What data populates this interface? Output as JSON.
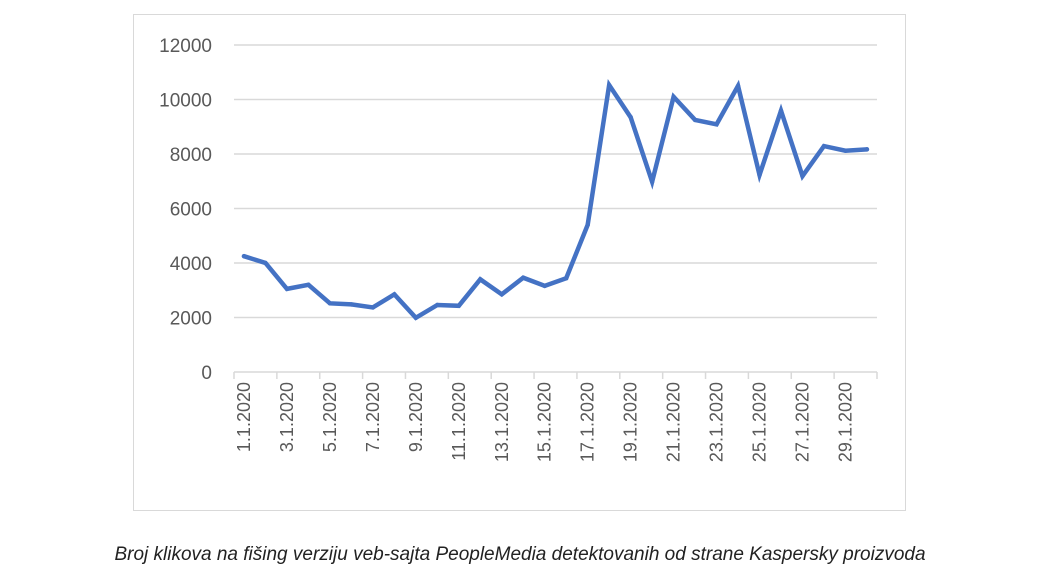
{
  "chart_data": {
    "type": "line",
    "title": "",
    "xlabel": "",
    "ylabel": "",
    "ylim": [
      0,
      12000
    ],
    "y_ticks": [
      "0",
      "2000",
      "4000",
      "6000",
      "8000",
      "10000",
      "12000"
    ],
    "x_tick_labels": [
      "1.1.2020",
      "3.1.2020",
      "5.1.2020",
      "7.1.2020",
      "9.1.2020",
      "11.1.2020",
      "13.1.2020",
      "15.1.2020",
      "17.1.2020",
      "19.1.2020",
      "21.1.2020",
      "23.1.2020",
      "25.1.2020",
      "27.1.2020",
      "29.1.2020"
    ],
    "x": [
      "1.1.2020",
      "2.1.2020",
      "3.1.2020",
      "4.1.2020",
      "5.1.2020",
      "6.1.2020",
      "7.1.2020",
      "8.1.2020",
      "9.1.2020",
      "10.1.2020",
      "11.1.2020",
      "12.1.2020",
      "13.1.2020",
      "14.1.2020",
      "15.1.2020",
      "16.1.2020",
      "17.1.2020",
      "18.1.2020",
      "19.1.2020",
      "20.1.2020",
      "21.1.2020",
      "22.1.2020",
      "23.1.2020",
      "24.1.2020",
      "25.1.2020",
      "26.1.2020",
      "27.1.2020",
      "28.1.2020",
      "29.1.2020",
      "30.1.2020"
    ],
    "series": [
      {
        "values": [
          4250,
          4000,
          3050,
          3200,
          2520,
          2480,
          2370,
          2850,
          1990,
          2460,
          2430,
          3400,
          2850,
          3460,
          3160,
          3440,
          5400,
          10530,
          9350,
          6980,
          10100,
          9250,
          9090,
          10500,
          7230,
          9590,
          7190,
          8290,
          8120,
          8170
        ]
      }
    ],
    "grid": true,
    "legend": "none",
    "line_color": "#4472c4"
  },
  "caption": "Broj klikova na fišing verziju veb-sajta PeopleMedia detektovanih od strane Kaspersky proizvoda"
}
